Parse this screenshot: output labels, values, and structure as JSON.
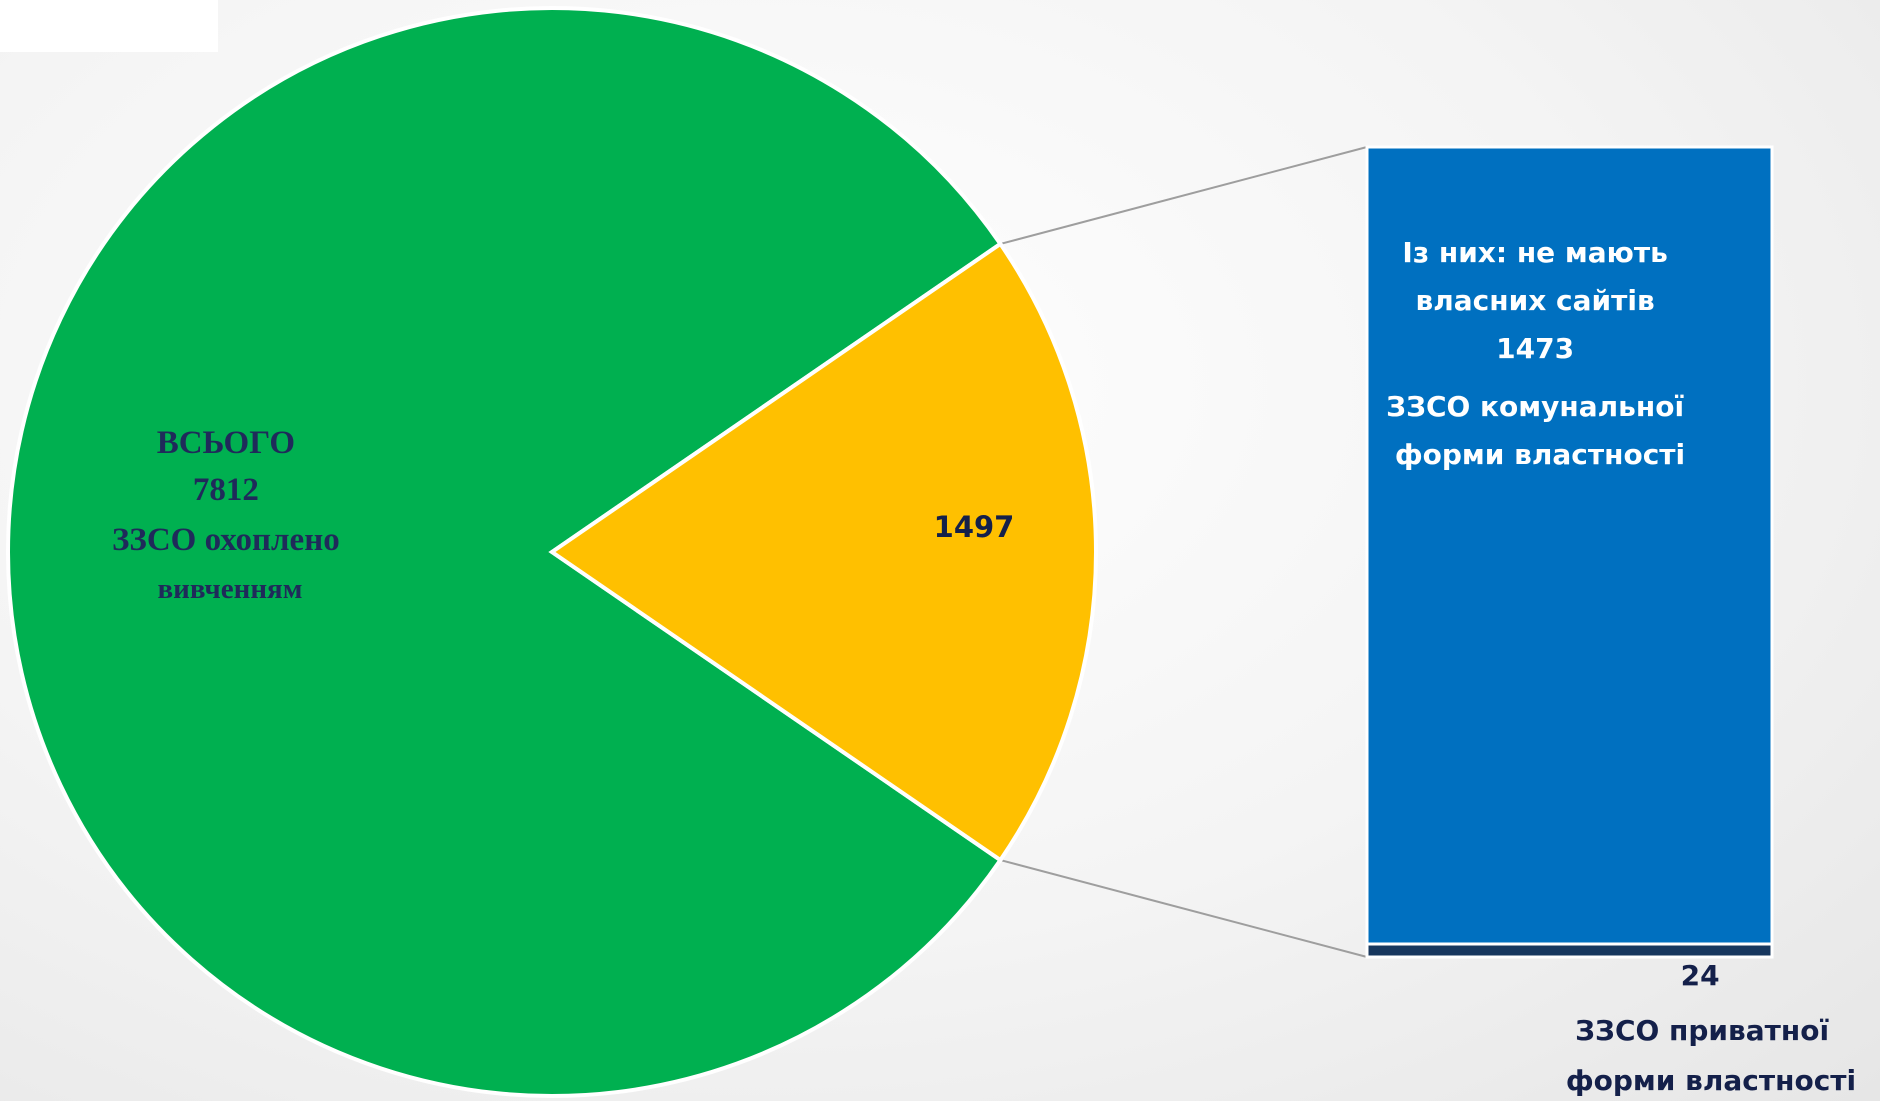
{
  "colors": {
    "green": "#00b050",
    "gold": "#ffc000",
    "blue": "#0070c0",
    "navy": "#17375e",
    "connector": "#9e9e9e"
  },
  "chart_data": {
    "type": "bar-of-pie",
    "pie": {
      "total": 7812,
      "slices": [
        {
          "label_lines": [
            "ВСЬОГО",
            "7812",
            "ЗЗСО охоплено",
            "вивченням"
          ],
          "value": 6315,
          "color": "#00b050"
        },
        {
          "label_lines": [
            "1497"
          ],
          "value": 1497,
          "color": "#ffc000"
        }
      ]
    },
    "bar": {
      "segments": [
        {
          "value": 1473,
          "color": "#0070c0",
          "label_lines": [
            "Із них: не мають",
            "власних сайтів",
            "1473",
            "ЗЗСО комунальної",
            "форми властності"
          ]
        },
        {
          "value": 24,
          "color": "#17375e",
          "label_lines": [
            "24",
            "ЗЗСО приватної",
            "форми властності"
          ]
        }
      ]
    }
  }
}
